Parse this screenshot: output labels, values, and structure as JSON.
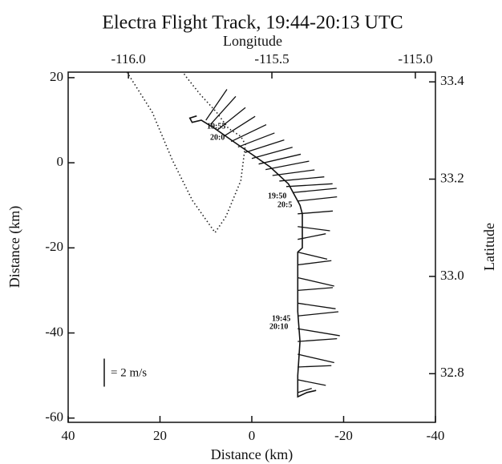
{
  "chart_data": {
    "type": "vector",
    "title": "Electra Flight Track, 19:44-20:13 UTC",
    "xlabel": "Distance (km)",
    "ylabel": "Distance (km)",
    "x2label": "Longitude",
    "y2label": "Latitude",
    "xlim": [
      40,
      -40
    ],
    "xticks": [
      40,
      20,
      0,
      -20,
      -40
    ],
    "ylim": [
      -61,
      21.3
    ],
    "yticks": [
      20,
      0,
      -20,
      -40,
      -60
    ],
    "x2lim": [
      -116.21,
      -114.93
    ],
    "x2ticks": [
      {
        "value": -116,
        "label": "-116.0"
      },
      -115.5,
      {
        "value": -115,
        "label": "-115.0"
      }
    ],
    "y2lim": [
      32.7,
      33.42
    ],
    "y2ticks": [
      33.4,
      33.2,
      {
        "value": 33,
        "label": "33.0"
      },
      32.8
    ],
    "track": {
      "x": [
        12,
        13.5,
        13,
        11,
        8,
        4,
        0,
        -4,
        -8,
        -9,
        -10,
        -10.5,
        -11,
        -11,
        -10,
        -10,
        -10,
        -10.5,
        -10,
        -10,
        -12,
        -14
      ],
      "y": [
        11,
        10.5,
        9.5,
        10,
        8,
        5,
        2,
        -1,
        -5,
        -7,
        -9,
        -10,
        -12,
        -20,
        -21,
        -25,
        -35,
        -42,
        -50,
        -55,
        -54,
        -53.5
      ]
    },
    "boundary": {
      "x": [
        27.2,
        21.7,
        17.3,
        12.9,
        8.0,
        5.6,
        2.4,
        1.4,
        2.4,
        5.1,
        7.7,
        11.2,
        14.3,
        15.0
      ],
      "y": [
        21.3,
        11.9,
        0.6,
        -8.9,
        -16.4,
        -12.6,
        -4.2,
        4.3,
        6.2,
        8.1,
        11.9,
        16,
        20.2,
        21.3
      ]
    },
    "vectors": {
      "x": [
        10,
        9,
        7.5,
        6,
        4.5,
        3,
        1.5,
        0,
        -1.5,
        -3,
        -4.5,
        -6,
        -7.5,
        -9,
        -10,
        -10,
        -10,
        -10,
        -10,
        -10,
        -10,
        -10,
        -10,
        -10,
        -10,
        -10,
        -10,
        -10,
        -10,
        -10
      ],
      "y": [
        10,
        9,
        7.7,
        6.3,
        5,
        3.7,
        2.4,
        1,
        -0.3,
        -1.6,
        -3,
        -4.3,
        -5.6,
        -7,
        -9,
        -12,
        -15,
        -18,
        -21,
        -24,
        -27,
        -30,
        -33,
        -36,
        -39,
        -42,
        -45,
        -48,
        -51,
        -54
      ],
      "u": [
        1.5,
        1.8,
        2.0,
        2.2,
        2.5,
        2.6,
        2.8,
        2.9,
        3.0,
        3.1,
        3.0,
        3.2,
        3.3,
        3.1,
        2.8,
        2.5,
        2.3,
        2.0,
        2.1,
        2.4,
        2.6,
        2.5,
        2.7,
        2.9,
        3.0,
        2.8,
        2.6,
        2.4,
        2.0,
        1.0
      ],
      "v": [
        2.2,
        2.0,
        1.6,
        1.4,
        1.2,
        1.0,
        0.9,
        0.8,
        0.7,
        0.6,
        0.4,
        0.3,
        0.2,
        0.3,
        0.3,
        0.2,
        -0.3,
        0.4,
        -0.5,
        0.3,
        -0.6,
        0.2,
        -0.4,
        0.3,
        -0.5,
        0.2,
        -0.6,
        0.1,
        -0.4,
        0.3
      ]
    },
    "annotations": [
      "19:55",
      "20:0",
      "19:50",
      "20:5",
      "19:45",
      "20:10"
    ],
    "scale_label": "= 2 m/s",
    "scale_value": 2
  }
}
